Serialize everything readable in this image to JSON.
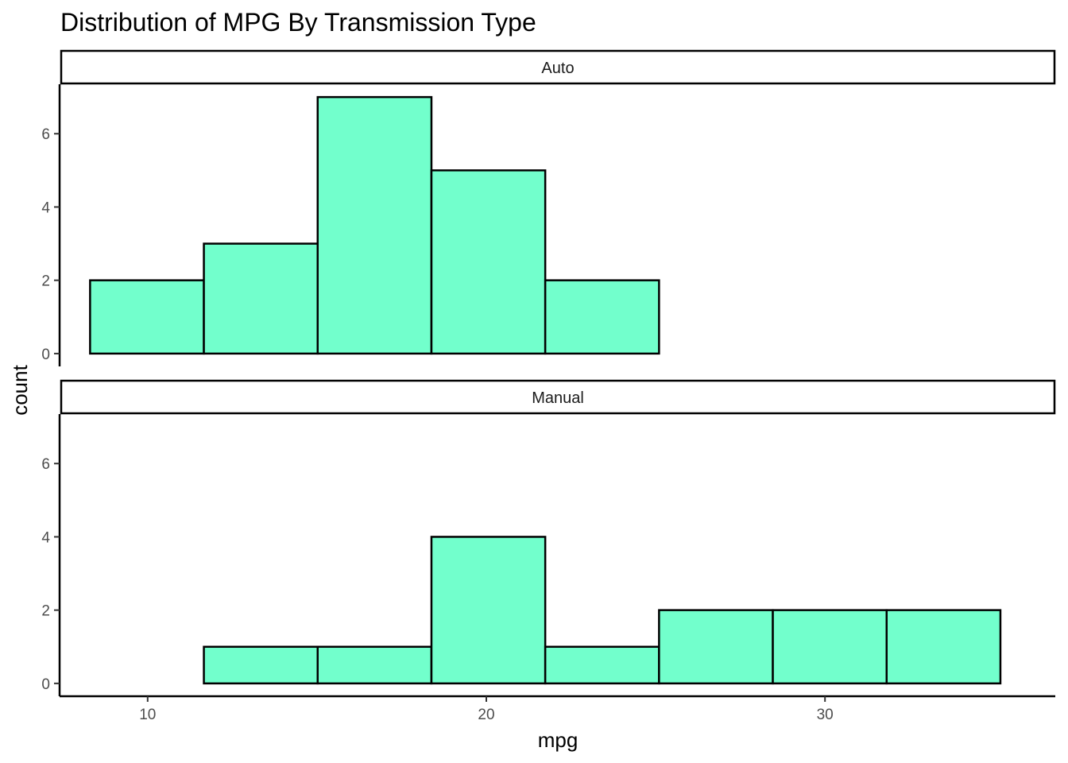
{
  "chart_data": {
    "type": "bar",
    "title": "Distribution of MPG By Transmission Type",
    "xlabel": "mpg",
    "ylabel": "count",
    "xlim": [
      7.4,
      36.8
    ],
    "ylim": [
      -0.35,
      7.35
    ],
    "x_ticks": [
      10,
      20,
      30
    ],
    "y_ticks": [
      0,
      2,
      4,
      6
    ],
    "bin_edges": [
      8.3,
      11.66,
      15.02,
      18.38,
      21.74,
      25.1,
      28.46,
      31.82,
      35.18
    ],
    "bar_fill": "#72ffcc",
    "bar_outline": "#000000",
    "grid": false,
    "legend": "none",
    "facets": [
      {
        "name": "Auto",
        "values": [
          2,
          3,
          7,
          5,
          2,
          0,
          0,
          0
        ]
      },
      {
        "name": "Manual",
        "values": [
          0,
          1,
          1,
          4,
          1,
          2,
          2,
          2
        ]
      }
    ]
  }
}
